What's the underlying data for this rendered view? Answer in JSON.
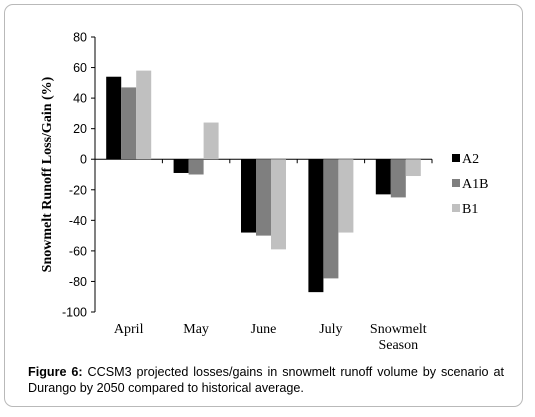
{
  "chart_data": {
    "type": "bar",
    "ylabel": "Snowmelt Runoff  Loss/Gain (%)",
    "ylim": [
      -100,
      80
    ],
    "yticks": [
      80,
      60,
      40,
      20,
      0,
      -20,
      -40,
      -60,
      -80,
      -100
    ],
    "grid": false,
    "legend_position": "right",
    "categories": [
      {
        "lines": [
          "April"
        ]
      },
      {
        "lines": [
          "May"
        ]
      },
      {
        "lines": [
          "June"
        ]
      },
      {
        "lines": [
          "July"
        ]
      },
      {
        "lines": [
          "Snowmelt",
          "Season"
        ]
      }
    ],
    "series": [
      {
        "name": "A2",
        "color": "#000000",
        "values": [
          54,
          -9,
          -48,
          -87,
          -23
        ]
      },
      {
        "name": "A1B",
        "color": "#7f7f7f",
        "values": [
          47,
          -10,
          -50,
          -78,
          -25
        ]
      },
      {
        "name": "B1",
        "color": "#c0c0c0",
        "values": [
          58,
          24,
          -59,
          -48,
          -11
        ]
      }
    ]
  },
  "caption": {
    "label": "Figure 6:",
    "text": " CCSM3 projected losses/gains in snowmelt runoff volume by scenario at Durango by 2050 compared to historical average."
  }
}
